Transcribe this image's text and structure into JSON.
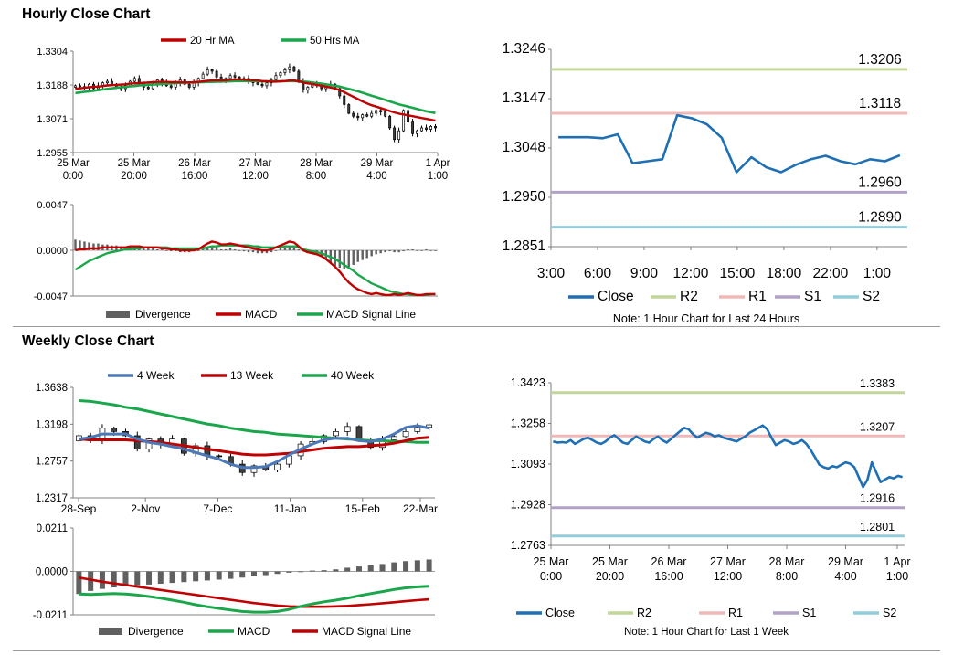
{
  "hourly_title": "Hourly Close Chart",
  "weekly_title": "Weekly Close Chart",
  "colors": {
    "red": "#c00000",
    "green": "#1aa64a",
    "blue": "#1f6fb5",
    "bluelight": "#4a78b8",
    "r2": "#c2d69a",
    "r1": "#f2b8b8",
    "s1": "#b3a2c7",
    "s2": "#92cddc",
    "gray": "#606060"
  },
  "chart_data": [
    {
      "id": "hourly_price",
      "type": "candlestick",
      "ylim": [
        1.2955,
        1.3304
      ],
      "yticks": [
        "1.3304",
        "1.3188",
        "1.3071",
        "1.2955"
      ],
      "xticks": [
        "25 Mar\n0:00",
        "25 Mar\n20:00",
        "26 Mar\n16:00",
        "27 Mar\n12:00",
        "28 Mar\n8:00",
        "29 Mar\n4:00",
        "1 Apr\n1:00"
      ],
      "legend": [
        "20 Hr MA",
        "50 Hrs MA"
      ],
      "close": [
        1.3185,
        1.3182,
        1.3178,
        1.319,
        1.3175,
        1.3185,
        1.3195,
        1.32,
        1.319,
        1.318,
        1.3175,
        1.3185,
        1.32,
        1.321,
        1.3195,
        1.318,
        1.3175,
        1.319,
        1.3205,
        1.3195,
        1.3185,
        1.318,
        1.3195,
        1.3205,
        1.319,
        1.318,
        1.3195,
        1.321,
        1.3225,
        1.324,
        1.3235,
        1.3215,
        1.32,
        1.321,
        1.322,
        1.3215,
        1.3205,
        1.321,
        1.32,
        1.3195,
        1.319,
        1.3185,
        1.3195,
        1.3205,
        1.322,
        1.323,
        1.324,
        1.325,
        1.3235,
        1.32,
        1.317,
        1.318,
        1.319,
        1.3185,
        1.3175,
        1.318,
        1.319,
        1.3175,
        1.315,
        1.312,
        1.309,
        1.308,
        1.3075,
        1.3085,
        1.308,
        1.309,
        1.31,
        1.3095,
        1.308,
        1.304,
        1.3,
        1.303,
        1.31,
        1.306,
        1.302,
        1.303,
        1.304,
        1.3035,
        1.3045,
        1.304
      ],
      "ma20": [
        1.3175,
        1.3176,
        1.3178,
        1.318,
        1.3181,
        1.3182,
        1.3184,
        1.3186,
        1.3187,
        1.3188,
        1.3189,
        1.319,
        1.3192,
        1.3193,
        1.3194,
        1.3195,
        1.3196,
        1.3197,
        1.3198,
        1.3198,
        1.3198,
        1.3197,
        1.3197,
        1.3197,
        1.3196,
        1.3196,
        1.3197,
        1.3198,
        1.32,
        1.3202,
        1.3203,
        1.3203,
        1.3203,
        1.3204,
        1.3206,
        1.3207,
        1.3207,
        1.3206,
        1.3205,
        1.3204,
        1.3203,
        1.3201,
        1.32,
        1.3199,
        1.3199,
        1.32,
        1.3201,
        1.3203,
        1.3203,
        1.32,
        1.3196,
        1.3193,
        1.3191,
        1.3188,
        1.3185,
        1.3182,
        1.3179,
        1.3175,
        1.317,
        1.3163,
        1.3155,
        1.3147,
        1.3139,
        1.3131,
        1.3124,
        1.3118,
        1.3113,
        1.3108,
        1.3103,
        1.3098,
        1.3093,
        1.3089,
        1.3086,
        1.3083,
        1.308,
        1.3077,
        1.3074,
        1.3071,
        1.3068,
        1.3065
      ],
      "ma50": [
        1.316,
        1.3162,
        1.3164,
        1.3166,
        1.3168,
        1.317,
        1.3172,
        1.3174,
        1.3176,
        1.3178,
        1.318,
        1.3181,
        1.3183,
        1.3184,
        1.3186,
        1.3187,
        1.3188,
        1.3189,
        1.319,
        1.3191,
        1.3192,
        1.3193,
        1.3194,
        1.3195,
        1.3195,
        1.3196,
        1.3196,
        1.3197,
        1.3197,
        1.3198,
        1.3198,
        1.3199,
        1.3199,
        1.32,
        1.32,
        1.3201,
        1.3201,
        1.3201,
        1.3201,
        1.3201,
        1.3201,
        1.32,
        1.32,
        1.32,
        1.32,
        1.32,
        1.3201,
        1.3201,
        1.3201,
        1.32,
        1.3199,
        1.3198,
        1.3196,
        1.3194,
        1.3192,
        1.319,
        1.3187,
        1.3185,
        1.3182,
        1.3178,
        1.3174,
        1.317,
        1.3166,
        1.3161,
        1.3156,
        1.3151,
        1.3146,
        1.3141,
        1.3136,
        1.3131,
        1.3126,
        1.3121,
        1.3117,
        1.3113,
        1.3109,
        1.3105,
        1.3101,
        1.3097,
        1.3094,
        1.3091
      ]
    },
    {
      "id": "hourly_macd",
      "type": "line+bar",
      "ylim": [
        -0.0047,
        0.0047
      ],
      "yticks": [
        "0.0047",
        "0.0000",
        "-0.0047"
      ],
      "legend": [
        "Divergence",
        "MACD",
        "MACD Signal Line"
      ],
      "macd": [
        0.0,
        0.0001,
        0.0001,
        0.0002,
        0.0002,
        0.0002,
        0.0003,
        0.0003,
        0.0003,
        0.0003,
        0.0003,
        0.0003,
        0.0004,
        0.0004,
        0.0004,
        0.0003,
        0.0003,
        0.0003,
        0.0003,
        0.0002,
        0.0002,
        0.0001,
        0.0001,
        0.0,
        0.0,
        0.0,
        0.0,
        0.0001,
        0.0004,
        0.0007,
        0.0009,
        0.0008,
        0.0006,
        0.0006,
        0.0007,
        0.0006,
        0.0005,
        0.0004,
        0.0003,
        0.0002,
        0.0001,
        0.0,
        0.0,
        0.0001,
        0.0003,
        0.0005,
        0.0007,
        0.0009,
        0.0008,
        0.0004,
        0.0,
        -0.0002,
        -0.0003,
        -0.0004,
        -0.0006,
        -0.0009,
        -0.0013,
        -0.0017,
        -0.0022,
        -0.0028,
        -0.0033,
        -0.0037,
        -0.004,
        -0.0042,
        -0.0044,
        -0.0045,
        -0.0044,
        -0.0045,
        -0.0046,
        -0.0046,
        -0.0045,
        -0.0046,
        -0.0045,
        -0.0044,
        -0.0045,
        -0.0046,
        -0.0046,
        -0.0045,
        -0.0045,
        -0.0045
      ],
      "signal": [
        -0.002,
        -0.0017,
        -0.0014,
        -0.0011,
        -0.0009,
        -0.0007,
        -0.0005,
        -0.0003,
        -0.0002,
        -0.0001,
        0.0,
        0.0001,
        0.0001,
        0.0002,
        0.0002,
        0.0003,
        0.0003,
        0.0003,
        0.0003,
        0.0003,
        0.0003,
        0.0002,
        0.0002,
        0.0002,
        0.0002,
        0.0002,
        0.0002,
        0.0002,
        0.0002,
        0.0003,
        0.0004,
        0.0004,
        0.0005,
        0.0005,
        0.0005,
        0.0005,
        0.0005,
        0.0005,
        0.0005,
        0.0004,
        0.0004,
        0.0003,
        0.0003,
        0.0003,
        0.0003,
        0.0003,
        0.0004,
        0.0004,
        0.0004,
        0.0003,
        0.0001,
        0.0,
        -0.0001,
        -0.0002,
        -0.0003,
        -0.0005,
        -0.0007,
        -0.0009,
        -0.0012,
        -0.0015,
        -0.0018,
        -0.0021,
        -0.0025,
        -0.0028,
        -0.0031,
        -0.0034,
        -0.0036,
        -0.0038,
        -0.004,
        -0.0042,
        -0.0043,
        -0.0044,
        -0.0045,
        -0.0045,
        -0.0046,
        -0.0046,
        -0.0046,
        -0.0046,
        -0.0045,
        -0.0045
      ],
      "divergence": [
        0.0011,
        0.001,
        0.0009,
        0.0008,
        0.0007,
        0.0007,
        0.0006,
        0.0006,
        0.0005,
        0.0005,
        0.0004,
        0.0004,
        0.0004,
        0.0003,
        0.0003,
        0.0003,
        0.0002,
        0.0002,
        0.0001,
        0.0001,
        0.0,
        -0.0001,
        -0.0001,
        -0.0002,
        -0.0002,
        -0.0002,
        -0.0001,
        0.0,
        0.0002,
        0.0003,
        0.0004,
        0.0003,
        0.0001,
        0.0001,
        0.0002,
        0.0001,
        0.0,
        -0.0001,
        -0.0002,
        -0.0002,
        -0.0003,
        -0.0003,
        -0.0003,
        -0.0002,
        0.0,
        0.0002,
        0.0003,
        0.0004,
        0.0004,
        0.0001,
        -0.0001,
        -0.0002,
        -0.0003,
        -0.0004,
        -0.0007,
        -0.001,
        -0.0013,
        -0.0016,
        -0.0018,
        -0.0019,
        -0.0017,
        -0.0015,
        -0.0012,
        -0.001,
        -0.0008,
        -0.0006,
        -0.0004,
        -0.0003,
        -0.0002,
        -0.0001,
        -0.0002,
        -0.0002,
        -0.0001,
        0.0001,
        0.0001,
        0.0,
        0.0,
        0.0001,
        0.0,
        0.0
      ]
    },
    {
      "id": "hourly_24h",
      "type": "line",
      "ylim": [
        1.2851,
        1.3246
      ],
      "yticks": [
        "1.3246",
        "1.3147",
        "1.3048",
        "1.2950",
        "1.2851"
      ],
      "xticks": [
        "3:00",
        "6:00",
        "9:00",
        "12:00",
        "15:00",
        "18:00",
        "22:00",
        "1:00"
      ],
      "close": [
        1.307,
        1.307,
        1.307,
        1.3068,
        1.3076,
        1.3018,
        1.3022,
        1.3026,
        1.3114,
        1.3108,
        1.3096,
        1.3069,
        1.3,
        1.303,
        1.301,
        1.3,
        1.3015,
        1.3026,
        1.3033,
        1.3022,
        1.3016,
        1.3026,
        1.3022,
        1.3034
      ],
      "levels": {
        "R2": 1.3206,
        "R1": 1.3118,
        "S1": 1.296,
        "S2": 1.289
      },
      "level_labels": [
        "1.3206",
        "1.3118",
        "1.2960",
        "1.2890"
      ],
      "legend": [
        "Close",
        "R2",
        "R1",
        "S1",
        "S2"
      ],
      "note": "Note: 1 Hour Chart for Last 24 Hours"
    },
    {
      "id": "weekly_price",
      "type": "candlestick",
      "ylim": [
        1.2317,
        1.3638
      ],
      "yticks": [
        "1.3638",
        "1.3198",
        "1.2757",
        "1.2317"
      ],
      "xticks": [
        "28-Sep",
        "2-Nov",
        "7-Dec",
        "11-Jan",
        "15-Feb",
        "22-Mar"
      ],
      "legend": [
        "4 Week",
        "13 Week",
        "40 Week"
      ],
      "close": [
        1.306,
        1.3,
        1.315,
        1.311,
        1.306,
        1.29,
        1.302,
        1.296,
        1.302,
        1.285,
        1.294,
        1.282,
        1.281,
        1.272,
        1.262,
        1.27,
        1.265,
        1.272,
        1.282,
        1.296,
        1.299,
        1.306,
        1.311,
        1.317,
        1.3,
        1.292,
        1.301,
        1.305,
        1.311,
        1.316,
        1.319
      ],
      "ma4": [
        1.302,
        1.304,
        1.308,
        1.308,
        1.308,
        1.302,
        1.298,
        1.296,
        1.293,
        1.29,
        1.286,
        1.282,
        1.278,
        1.272,
        1.268,
        1.268,
        1.269,
        1.275,
        1.283,
        1.29,
        1.296,
        1.301,
        1.303,
        1.303,
        1.3,
        1.299,
        1.302,
        1.308,
        1.316,
        1.318,
        1.315
      ],
      "ma13": [
        1.302,
        1.301,
        1.301,
        1.301,
        1.301,
        1.3,
        1.299,
        1.298,
        1.296,
        1.294,
        1.292,
        1.29,
        1.288,
        1.286,
        1.284,
        1.283,
        1.283,
        1.284,
        1.285,
        1.287,
        1.289,
        1.291,
        1.292,
        1.293,
        1.293,
        1.294,
        1.295,
        1.297,
        1.3,
        1.303,
        1.304
      ],
      "ma40": [
        1.348,
        1.347,
        1.345,
        1.343,
        1.34,
        1.338,
        1.335,
        1.332,
        1.329,
        1.326,
        1.323,
        1.32,
        1.318,
        1.315,
        1.313,
        1.311,
        1.31,
        1.308,
        1.307,
        1.306,
        1.305,
        1.304,
        1.303,
        1.302,
        1.301,
        1.3,
        1.3,
        1.299,
        1.299,
        1.298,
        1.298
      ]
    },
    {
      "id": "weekly_macd",
      "type": "line+bar",
      "ylim": [
        -0.0211,
        0.0211
      ],
      "yticks": [
        "0.0211",
        "0.0000",
        "-0.0211"
      ],
      "legend": [
        "Divergence",
        "MACD",
        "MACD Signal Line"
      ],
      "macd": [
        -0.011,
        -0.0112,
        -0.011,
        -0.0108,
        -0.011,
        -0.0115,
        -0.0122,
        -0.013,
        -0.014,
        -0.015,
        -0.0162,
        -0.0172,
        -0.018,
        -0.0188,
        -0.0195,
        -0.0198,
        -0.0198,
        -0.0195,
        -0.0185,
        -0.017,
        -0.0158,
        -0.0148,
        -0.014,
        -0.013,
        -0.0118,
        -0.0108,
        -0.0098,
        -0.0088,
        -0.008,
        -0.0075,
        -0.0072
      ],
      "signal": [
        -0.003,
        -0.004,
        -0.005,
        -0.0058,
        -0.0066,
        -0.0074,
        -0.0082,
        -0.009,
        -0.0098,
        -0.0106,
        -0.0114,
        -0.0122,
        -0.013,
        -0.0138,
        -0.0146,
        -0.0154,
        -0.016,
        -0.0166,
        -0.017,
        -0.0172,
        -0.0172,
        -0.0172,
        -0.017,
        -0.0168,
        -0.0164,
        -0.016,
        -0.0155,
        -0.015,
        -0.0145,
        -0.014,
        -0.0136
      ],
      "divergence": [
        -0.011,
        -0.0095,
        -0.0085,
        -0.0078,
        -0.0072,
        -0.0068,
        -0.0064,
        -0.006,
        -0.0056,
        -0.0052,
        -0.0048,
        -0.0044,
        -0.004,
        -0.0036,
        -0.003,
        -0.0024,
        -0.0018,
        -0.0012,
        -0.0006,
        0.0,
        0.0004,
        0.0006,
        0.001,
        0.0018,
        0.0024,
        0.003,
        0.0036,
        0.0044,
        0.005,
        0.0054,
        0.0058
      ]
    },
    {
      "id": "weekly_1week",
      "type": "line",
      "ylim": [
        1.2763,
        1.3423
      ],
      "yticks": [
        "1.3423",
        "1.3258",
        "1.3093",
        "1.2928",
        "1.2763"
      ],
      "xticks": [
        "25 Mar\n0:00",
        "25 Mar\n20:00",
        "26 Mar\n16:00",
        "27 Mar\n12:00",
        "28 Mar\n8:00",
        "29 Mar\n4:00",
        "1 Apr\n1:00"
      ],
      "close": [
        1.3185,
        1.318,
        1.3182,
        1.318,
        1.319,
        1.3175,
        1.3185,
        1.3195,
        1.32,
        1.319,
        1.318,
        1.3175,
        1.3185,
        1.32,
        1.321,
        1.3195,
        1.318,
        1.3175,
        1.319,
        1.3205,
        1.3195,
        1.3185,
        1.318,
        1.3195,
        1.3205,
        1.319,
        1.318,
        1.3195,
        1.321,
        1.3225,
        1.324,
        1.3235,
        1.3215,
        1.32,
        1.321,
        1.322,
        1.3215,
        1.3205,
        1.321,
        1.32,
        1.3195,
        1.319,
        1.3185,
        1.3195,
        1.3205,
        1.322,
        1.323,
        1.324,
        1.325,
        1.3235,
        1.32,
        1.317,
        1.318,
        1.319,
        1.3185,
        1.3175,
        1.318,
        1.319,
        1.3175,
        1.315,
        1.312,
        1.309,
        1.308,
        1.3075,
        1.3085,
        1.308,
        1.309,
        1.31,
        1.3095,
        1.308,
        1.304,
        1.3,
        1.303,
        1.31,
        1.306,
        1.302,
        1.303,
        1.304,
        1.3035,
        1.3045,
        1.304
      ],
      "levels": {
        "R2": 1.3383,
        "R1": 1.3207,
        "S1": 1.2916,
        "S2": 1.2801
      },
      "level_labels": [
        "1.3383",
        "1.3207",
        "1.2916",
        "1.2801"
      ],
      "legend": [
        "Close",
        "R2",
        "R1",
        "S1",
        "S2"
      ],
      "note": "Note: 1 Hour Chart for Last 1 Week"
    }
  ]
}
